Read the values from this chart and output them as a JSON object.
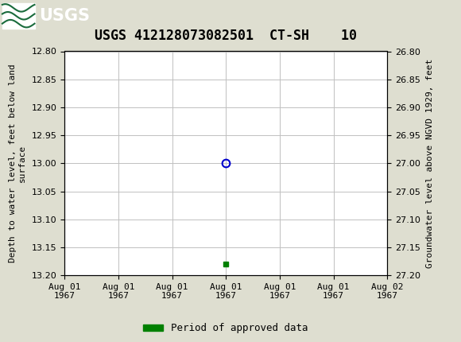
{
  "title": "USGS 412128073082501  CT-SH    10",
  "ylabel_left": "Depth to water level, feet below land\nsurface",
  "ylabel_right": "Groundwater level above NGVD 1929, feet",
  "ylim_left": [
    12.8,
    13.2
  ],
  "ylim_right": [
    26.8,
    27.2
  ],
  "yticks_left": [
    12.8,
    12.85,
    12.9,
    12.95,
    13.0,
    13.05,
    13.1,
    13.15,
    13.2
  ],
  "yticks_right": [
    26.8,
    26.85,
    26.9,
    26.95,
    27.0,
    27.05,
    27.1,
    27.15,
    27.2
  ],
  "header_color": "#1a6b3c",
  "bg_color": "#deded0",
  "plot_bg_color": "#ffffff",
  "grid_color": "#c0c0c0",
  "data_point_y": 13.0,
  "data_point_color": "#0000cc",
  "approved_point_y": 13.18,
  "approved_color": "#008000",
  "legend_label": "Period of approved data",
  "title_fontsize": 12,
  "axis_fontsize": 8,
  "tick_fontsize": 8,
  "xaxis_start_hours": 0,
  "xaxis_end_hours": 24,
  "data_point_hour": 12,
  "approved_point_hour": 12,
  "xtick_hours": [
    0,
    4,
    8,
    12,
    16,
    20,
    24
  ],
  "xtick_labels": [
    "Aug 01\n1967",
    "Aug 01\n1967",
    "Aug 01\n1967",
    "Aug 01\n1967",
    "Aug 01\n1967",
    "Aug 01\n1967",
    "Aug 02\n1967"
  ]
}
